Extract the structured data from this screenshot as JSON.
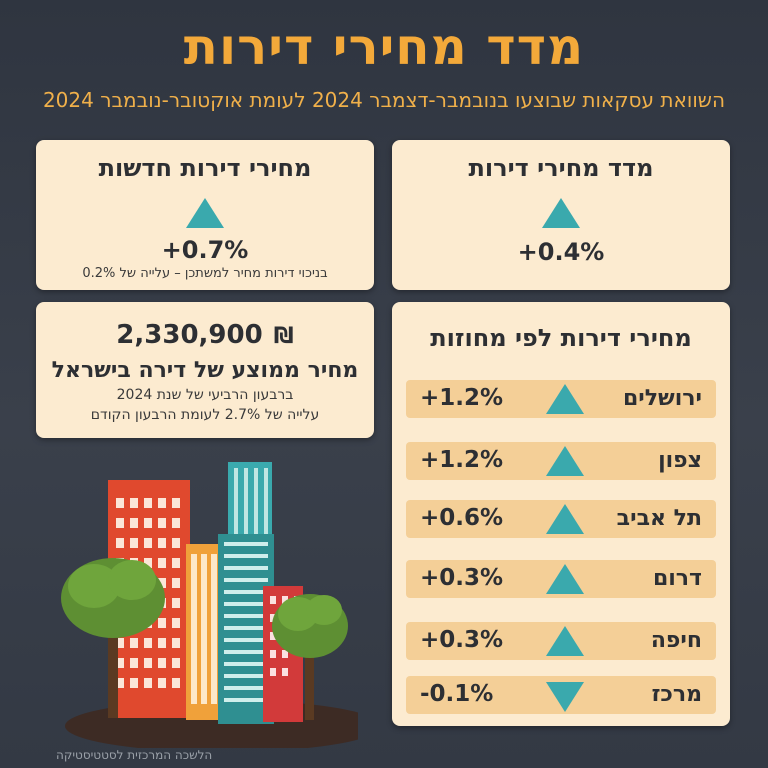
{
  "header": {
    "title": "מדד מחירי דירות",
    "subtitle": "השוואת עסקאות שבוצעו בנובמבר-דצמבר 2024 לעומת אוקטובר-נובמבר 2024"
  },
  "index_card": {
    "title": "מדד מחירי דירות",
    "value": "+0.4%",
    "direction": "up"
  },
  "new_card": {
    "title": "מחירי דירות חדשות",
    "value": "+0.7%",
    "direction": "up",
    "note": "בניכוי דירות מחיר למשתכן – עלייה של 0.2%"
  },
  "avg_card": {
    "price": "2,330,900",
    "currency": "₪",
    "title": "מחיר ממוצע של דירה בישראל",
    "line1": "ברבעון הרביעי של שנת 2024",
    "line2": "עלייה של 2.7% לעומת הרבעון הקודם"
  },
  "regions_card": {
    "title": "מחירי דירות לפי מחוזות",
    "rows": [
      {
        "name": "ירושלים",
        "value": "+1.2%",
        "direction": "up"
      },
      {
        "name": "צפון",
        "value": "+1.2%",
        "direction": "up"
      },
      {
        "name": "תל אביב",
        "value": "+0.6%",
        "direction": "up"
      },
      {
        "name": "דרום",
        "value": "+0.3%",
        "direction": "up"
      },
      {
        "name": "חיפה",
        "value": "+0.3%",
        "direction": "up"
      },
      {
        "name": "מרכז",
        "value": "-0.1%",
        "direction": "down"
      }
    ]
  },
  "footer": {
    "source": "הלשכה המרכזית לסטטיסטיקה"
  },
  "colors": {
    "accent": "#f3a93a",
    "card": "#fcebd0",
    "row": "#f4cf97",
    "arrow": "#3aa9ad"
  }
}
